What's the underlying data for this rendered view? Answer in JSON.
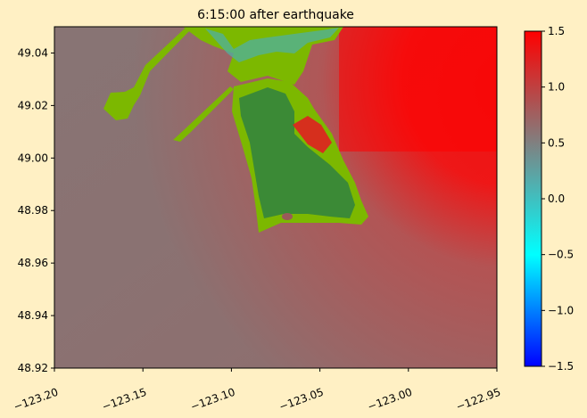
{
  "chart_data": {
    "type": "heatmap",
    "title": "6:15:00 after earthquake",
    "xlabel": "",
    "ylabel": "",
    "xlim": [
      -123.2,
      -122.95
    ],
    "ylim": [
      48.92,
      49.05
    ],
    "x_ticks": [
      -123.2,
      -123.15,
      -123.1,
      -123.05,
      -123.0,
      -122.95
    ],
    "x_tick_labels": [
      "−123.20",
      "−123.15",
      "−123.10",
      "−123.05",
      "−123.00",
      "−122.95"
    ],
    "y_ticks": [
      48.92,
      48.94,
      48.96,
      48.98,
      49.0,
      49.02,
      49.04
    ],
    "y_tick_labels": [
      "48.92",
      "48.94",
      "48.96",
      "48.98",
      "49.00",
      "49.02",
      "49.04"
    ],
    "colorbar": {
      "range": [
        -1.5,
        1.5
      ],
      "ticks": [
        -1.5,
        -1.0,
        -0.5,
        0.0,
        0.5,
        1.0,
        1.5
      ],
      "tick_labels": [
        "−1.5",
        "−1.0",
        "−0.5",
        "0.0",
        "0.5",
        "1.0",
        "1.5"
      ],
      "colors": [
        "#0000ff",
        "#00ffff",
        "#808080",
        "#ff0000"
      ]
    },
    "land_colors": {
      "low": "#7cb800",
      "high": "#3b8a36"
    },
    "grid": false,
    "legend": "none"
  }
}
